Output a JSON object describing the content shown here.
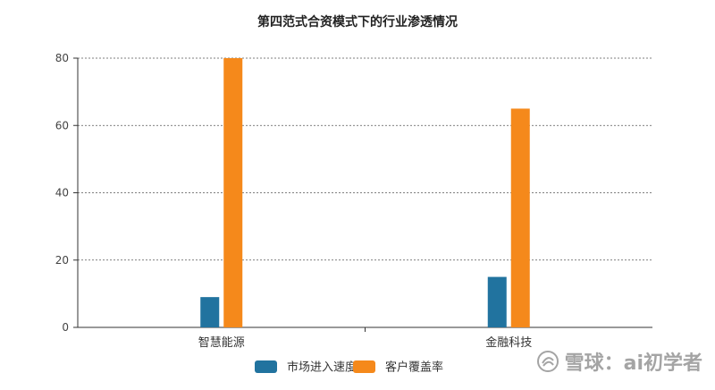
{
  "chart_data": {
    "type": "bar",
    "title": "第四范式合资模式下的行业渗透情况",
    "categories": [
      "智慧能源",
      "金融科技"
    ],
    "series": [
      {
        "name": "市场进入速度",
        "color": "#21739f",
        "values": [
          9,
          15
        ]
      },
      {
        "name": "客户覆盖率",
        "color": "#f5891b",
        "values": [
          80,
          65
        ]
      }
    ],
    "ylim": [
      0,
      80
    ],
    "yticks": [
      0,
      20,
      40,
      60,
      80
    ],
    "grid": "horizontal-dotted",
    "legend": "bottom-center"
  },
  "watermark": {
    "text": "雪球：ai初学者"
  }
}
